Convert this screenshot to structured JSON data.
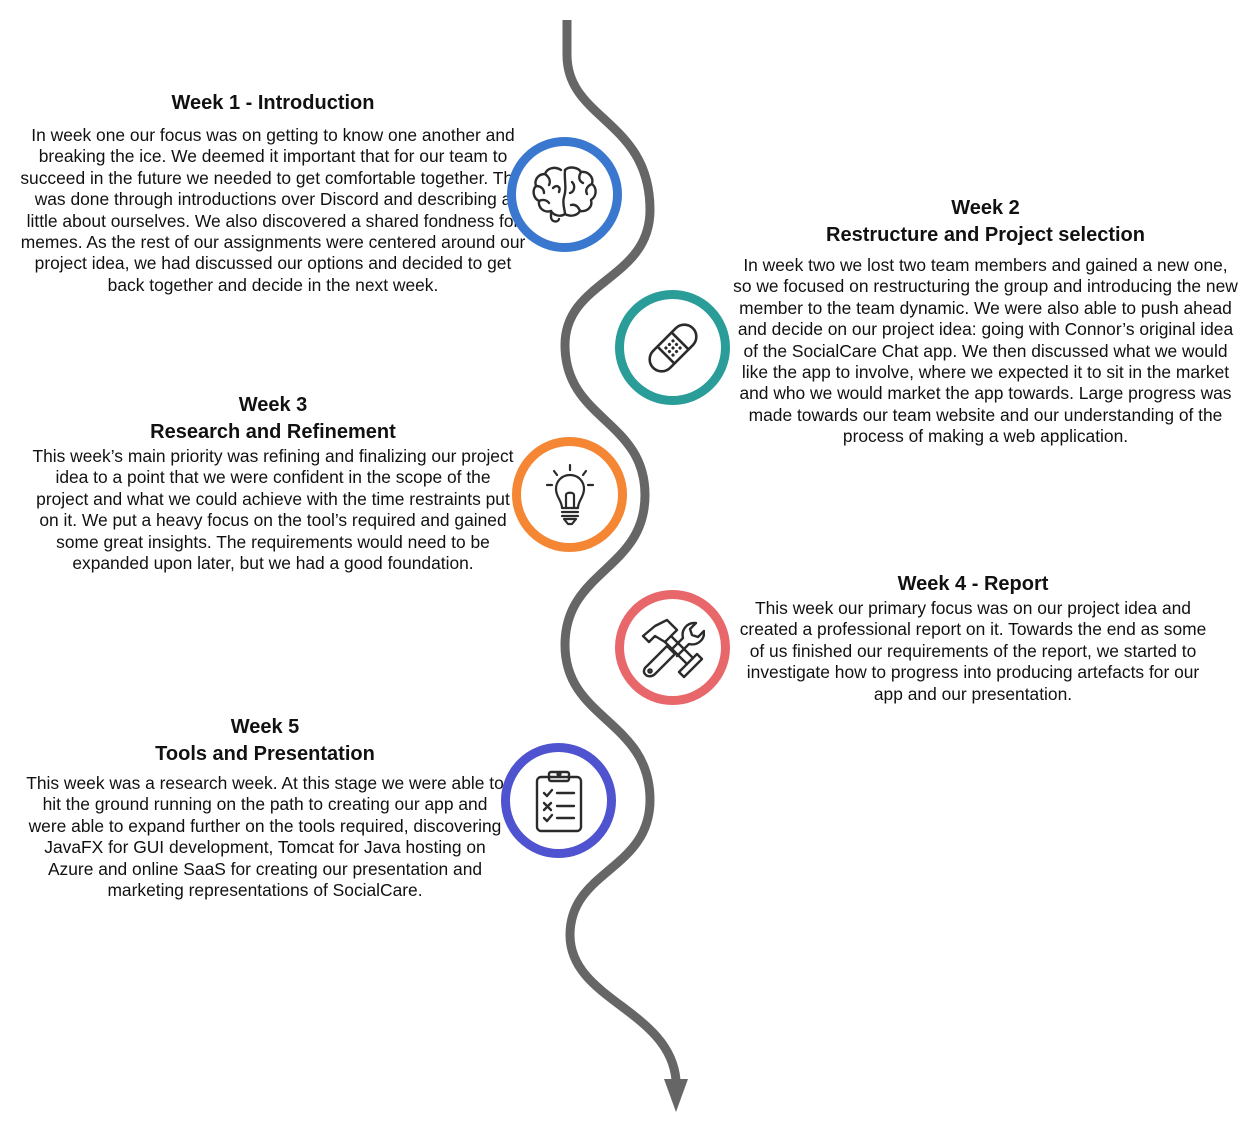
{
  "colors": {
    "path": "#666666",
    "week1": "#3a78d0",
    "week2": "#2a9d98",
    "week3": "#f58634",
    "week4": "#e8676b",
    "week5": "#4f53cf",
    "icon_stroke": "#2b2b2b"
  },
  "weeks": [
    {
      "title": "Week 1 - Introduction",
      "body": "In week one our focus was on getting to know one another and breaking the ice. We deemed it important that for our team to succeed in the future we needed to get comfortable together. This was done through introductions over Discord and describing a little about ourselves. We also discovered a shared fondness for memes. As the rest of our assignments were centered around our project idea, we had discussed our options and decided to get back together and decide in the next week.",
      "icon": "brain-icon"
    },
    {
      "title_line1": "Week 2",
      "title_line2": "Restructure and Project selection",
      "body": "In week two we lost two team members and gained a new one, so we focused on restructuring the group and introducing the new member to the team dynamic. We were also able to push ahead and decide on our project idea: going with Connor’s original idea of the SocialCare Chat app. We then discussed what we would like the app to involve, where we expected it to sit in the market and who we would market the app towards. Large progress was made towards our team website and our understanding of the process of making a web application.",
      "icon": "bandage-icon"
    },
    {
      "title_line1": "Week 3",
      "title_line2": "Research and Refinement",
      "body": "This week’s main priority was refining and finalizing our project idea to a point that we were confident in the scope of the project and what we could achieve with the time restraints put on it. We put a heavy focus on the tool’s required and gained some great insights. The requirements would need to be expanded upon later, but we had a good foundation.",
      "icon": "lightbulb-icon"
    },
    {
      "title": "Week 4 - Report",
      "body": "This week our primary focus was on our project idea and created a professional report on it. Towards the end as some of us finished our requirements of the report, we started to investigate how to progress into producing artefacts for our app and our presentation.",
      "icon": "tools-icon"
    },
    {
      "title_line1": "Week 5",
      "title_line2": "Tools and Presentation",
      "body": "This week was a research week. At this stage we were able to hit the ground running on the path to creating our app and were able to expand further on the tools required, discovering JavaFX for GUI development, Tomcat for Java hosting on Azure and online SaaS for creating our presentation and marketing representations of SocialCare.",
      "icon": "clipboard-checklist-icon"
    }
  ]
}
